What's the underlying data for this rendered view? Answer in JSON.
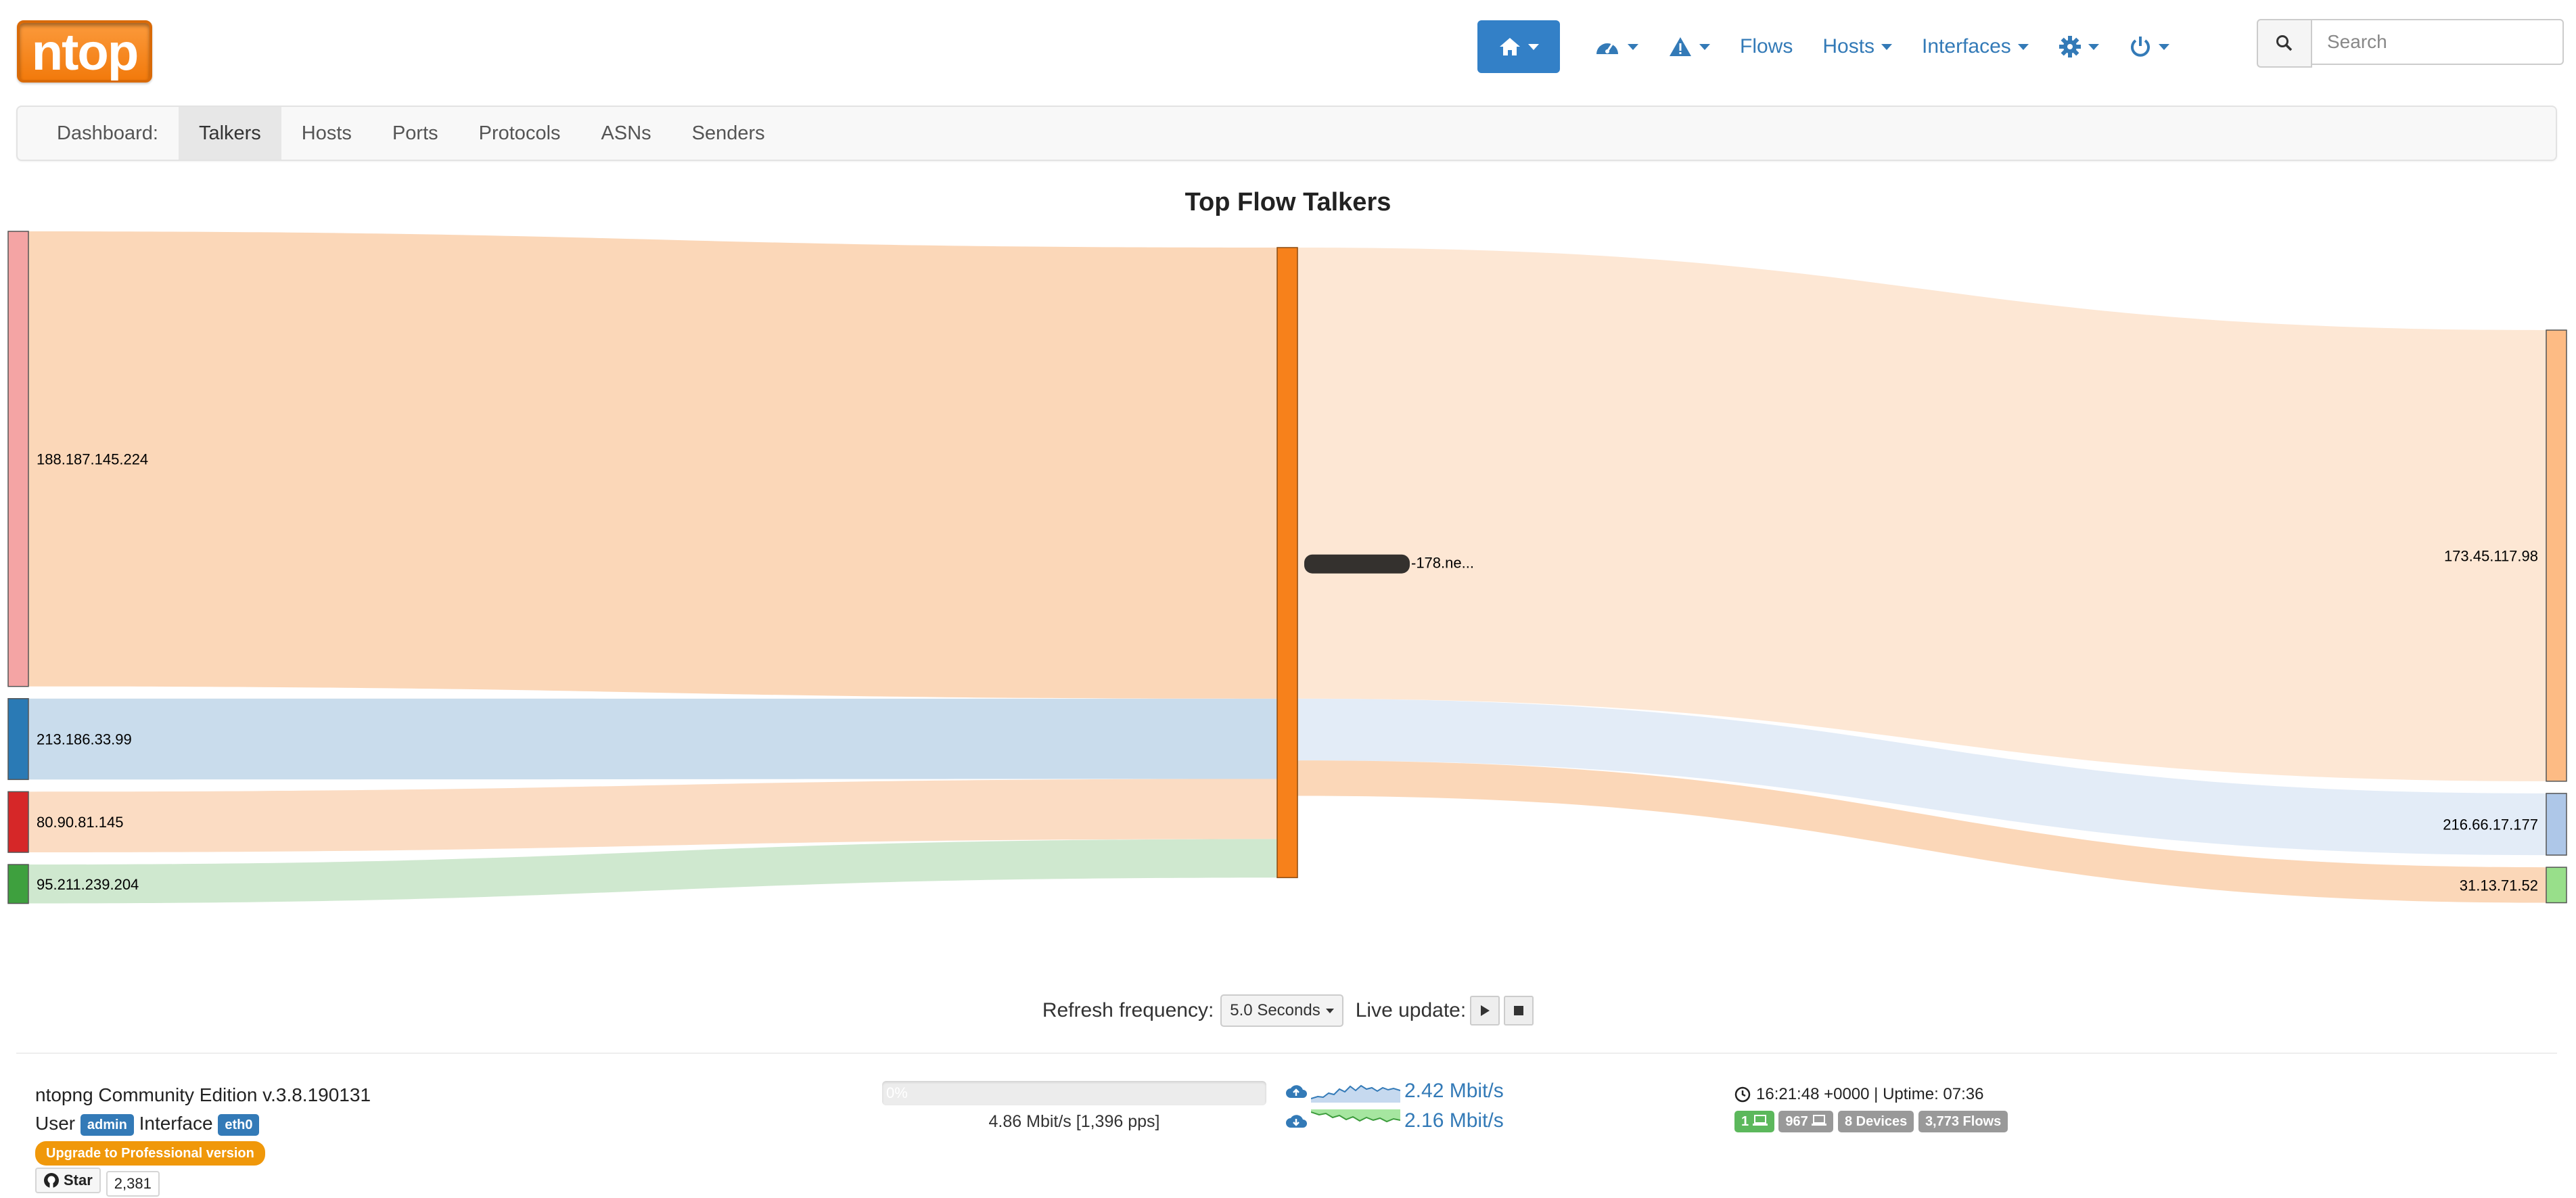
{
  "header": {
    "logo_text": "ntop",
    "nav": {
      "home_icon": "home-icon",
      "dashboard_icon": "dashboard-icon",
      "alerts_icon": "warning-icon",
      "flows_label": "Flows",
      "hosts_label": "Hosts",
      "interfaces_label": "Interfaces",
      "settings_icon": "gear-icon",
      "power_icon": "power-icon"
    },
    "search": {
      "placeholder": "Search"
    }
  },
  "tabs": {
    "lead_label": "Dashboard:",
    "items": [
      "Talkers",
      "Hosts",
      "Ports",
      "Protocols",
      "ASNs",
      "Senders"
    ],
    "active": "Talkers"
  },
  "sankey": {
    "title": "Top Flow Talkers",
    "sources": [
      {
        "name": "188.187.145.224",
        "value": 58.5,
        "color": "#f4a4a4"
      },
      {
        "name": "213.186.33.99",
        "value": 10.4,
        "color": "#2a7ab5"
      },
      {
        "name": "80.90.81.145",
        "value": 7.8,
        "color": "#d62728"
      },
      {
        "name": "95.211.239.204",
        "value": 5.0,
        "color": "#3ea03e"
      }
    ],
    "center": {
      "name": "-178.ne...",
      "color": "#f7811b"
    },
    "targets": [
      {
        "name": "173.45.117.98",
        "value": 58.5,
        "color": "#fdbb84"
      },
      {
        "name": "216.66.17.177",
        "value": 8.0,
        "color": "#aec7e8"
      },
      {
        "name": "31.13.71.52",
        "value": 4.6,
        "color": "#98df8a"
      }
    ],
    "link_colors_left": [
      "#fbd7b8",
      "#c9dcec",
      "#fbdcc3",
      "#cfe8cf"
    ],
    "link_colors_right": [
      "#fde7d4",
      "#e3ecf7",
      "#fbd7b8"
    ]
  },
  "refresh": {
    "label": "Refresh frequency:",
    "value": "5.0 Seconds",
    "live_label": "Live update:"
  },
  "footer": {
    "version": "ntopng Community Edition v.3.8.190131",
    "user_label": "User",
    "user_badge": "admin",
    "interface_label": "Interface",
    "interface_badge": "eth0",
    "upgrade_label": "Upgrade to Professional version",
    "star_label": "Star",
    "star_count": "2,381",
    "progress_text": "0%",
    "progress_fraction": 0.0,
    "throughput": "4.86 Mbit/s [1,396 pps]",
    "upload_rate": "2.42 Mbit/s",
    "download_rate": "2.16 Mbit/s",
    "clock": "16:21:48 +0000 | Uptime: 07:36",
    "badges": {
      "local_hosts": "1",
      "remote_hosts": "967",
      "devices": "8 Devices",
      "flows": "3,773 Flows"
    }
  }
}
